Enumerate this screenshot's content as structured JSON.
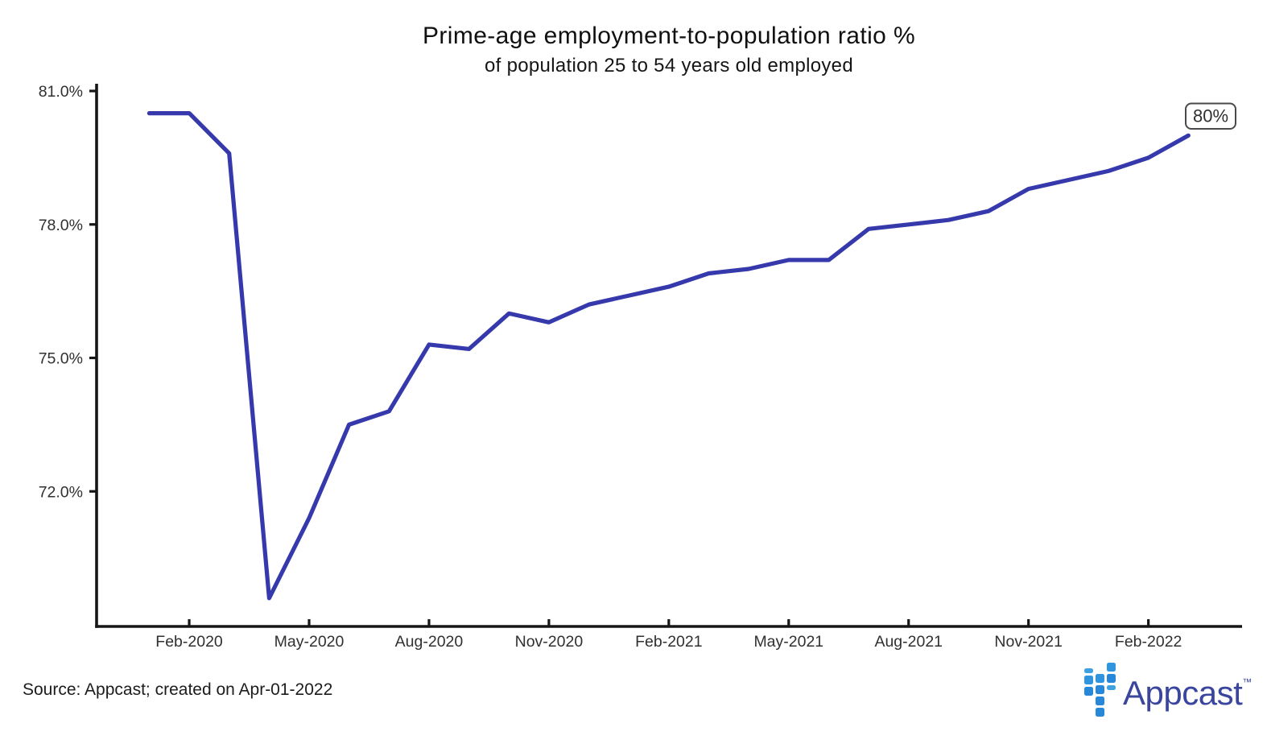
{
  "header": {
    "title": "Prime-age employment-to-population ratio %",
    "subtitle": "of population 25 to 54 years old employed"
  },
  "chart_data": {
    "type": "line",
    "title": "Prime-age employment-to-population ratio %",
    "subtitle": "of population 25 to 54 years old employed",
    "series_name": "Prime-age employment-to-population ratio",
    "x": [
      "Jan-2020",
      "Feb-2020",
      "Mar-2020",
      "Apr-2020",
      "May-2020",
      "Jun-2020",
      "Jul-2020",
      "Aug-2020",
      "Sep-2020",
      "Oct-2020",
      "Nov-2020",
      "Dec-2020",
      "Jan-2021",
      "Feb-2021",
      "Mar-2021",
      "Apr-2021",
      "May-2021",
      "Jun-2021",
      "Jul-2021",
      "Aug-2021",
      "Sep-2021",
      "Oct-2021",
      "Nov-2021",
      "Dec-2021",
      "Jan-2022",
      "Feb-2022",
      "Mar-2022"
    ],
    "values": [
      80.5,
      80.5,
      79.6,
      69.6,
      71.4,
      73.5,
      73.8,
      75.3,
      75.2,
      76.0,
      75.8,
      76.2,
      76.4,
      76.6,
      76.9,
      77.0,
      77.2,
      77.2,
      77.9,
      78.0,
      78.1,
      78.3,
      78.8,
      79.0,
      79.2,
      79.5,
      80.0
    ],
    "x_ticks": [
      {
        "label": "Feb-2020",
        "month_index": 1
      },
      {
        "label": "May-2020",
        "month_index": 4
      },
      {
        "label": "Aug-2020",
        "month_index": 7
      },
      {
        "label": "Nov-2020",
        "month_index": 10
      },
      {
        "label": "Feb-2021",
        "month_index": 13
      },
      {
        "label": "May-2021",
        "month_index": 16
      },
      {
        "label": "Aug-2021",
        "month_index": 19
      },
      {
        "label": "Nov-2021",
        "month_index": 22
      },
      {
        "label": "Feb-2022",
        "month_index": 25
      }
    ],
    "y_ticks": [
      {
        "label": "81.0%",
        "value": 81.0
      },
      {
        "label": "78.0%",
        "value": 78.0
      },
      {
        "label": "75.0%",
        "value": 75.0
      },
      {
        "label": "72.0%",
        "value": 72.0
      }
    ],
    "ylim": [
      68.9,
      81.0
    ],
    "xlabel": "",
    "ylabel": "",
    "grid": false,
    "legend_position": "none",
    "line_color": "#3539ab",
    "annotation": {
      "label": "80%",
      "x": "Mar-2022",
      "value": 80.0
    }
  },
  "footer": {
    "source_text": "Source: Appcast; created on Apr-01-2022"
  },
  "logo": {
    "wordmark": "Appcast",
    "trademark": "™",
    "mark_color": "#2787d9",
    "wordmark_color": "#3a459e"
  }
}
